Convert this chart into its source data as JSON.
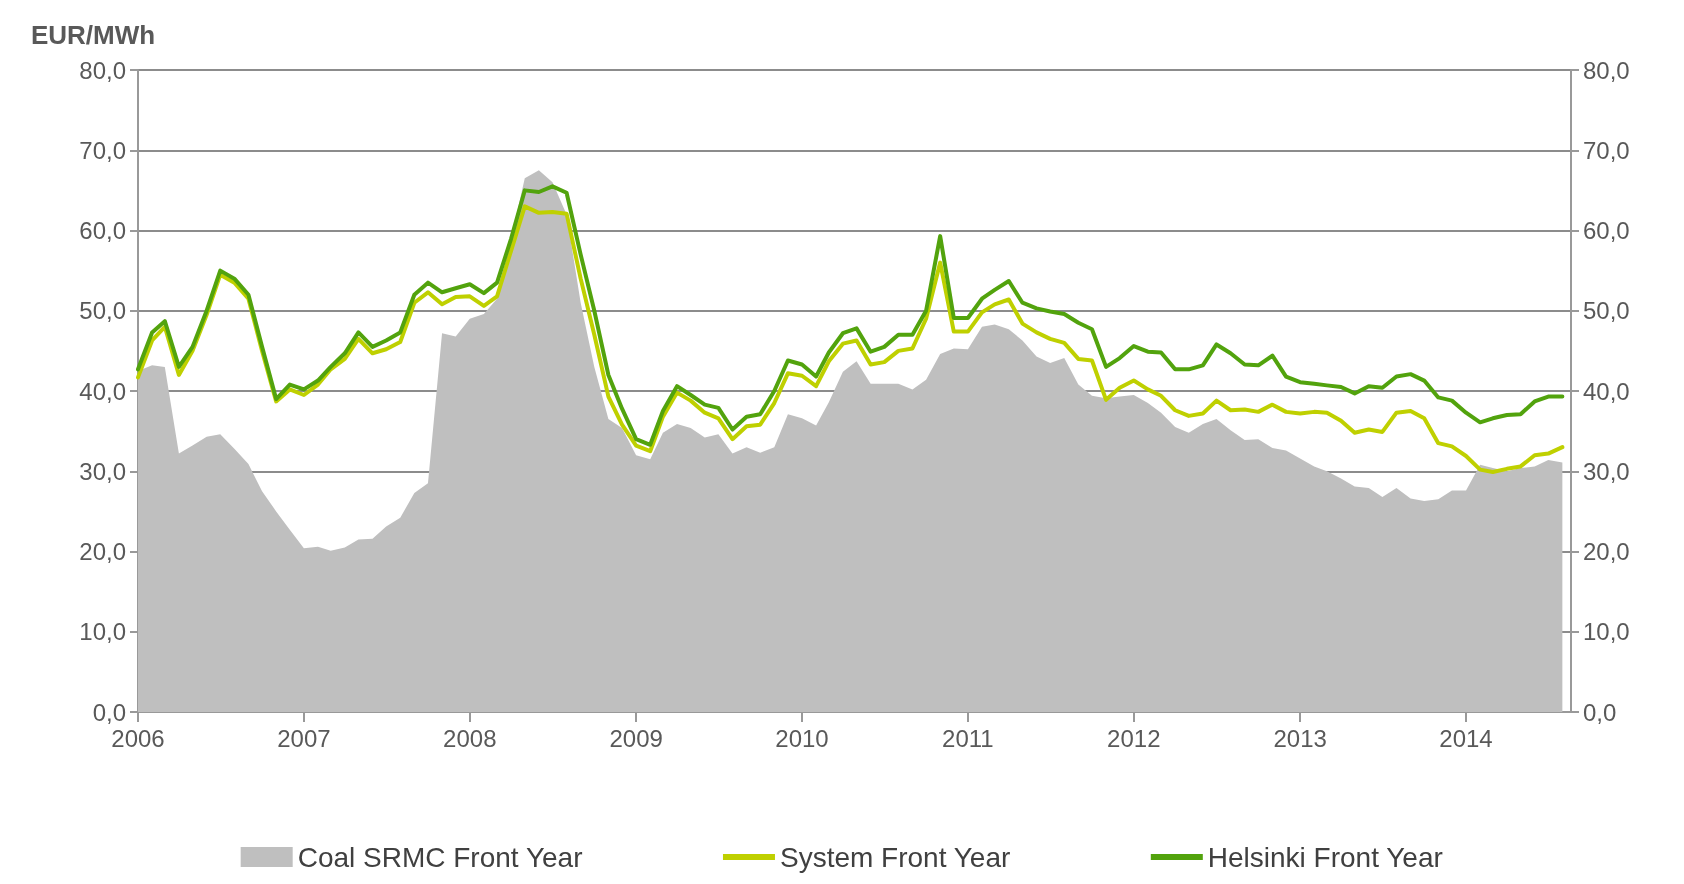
{
  "chart_data": {
    "type": "line",
    "ylabel": "EUR/MWh",
    "x": [
      "2006-01",
      "2006-02",
      "2006-03",
      "2006-04",
      "2006-05",
      "2006-06",
      "2006-07",
      "2006-08",
      "2006-09",
      "2006-10",
      "2006-11",
      "2006-12",
      "2007-01",
      "2007-02",
      "2007-03",
      "2007-04",
      "2007-05",
      "2007-06",
      "2007-07",
      "2007-08",
      "2007-09",
      "2007-10",
      "2007-11",
      "2007-12",
      "2008-01",
      "2008-02",
      "2008-03",
      "2008-04",
      "2008-05",
      "2008-06",
      "2008-07",
      "2008-08",
      "2008-09",
      "2008-10",
      "2008-11",
      "2008-12",
      "2009-01",
      "2009-02",
      "2009-03",
      "2009-04",
      "2009-05",
      "2009-06",
      "2009-07",
      "2009-08",
      "2009-09",
      "2009-10",
      "2009-11",
      "2009-12",
      "2010-01",
      "2010-02",
      "2010-03",
      "2010-04",
      "2010-05",
      "2010-06",
      "2010-07",
      "2010-08",
      "2010-09",
      "2010-10",
      "2010-11",
      "2010-12",
      "2011-01",
      "2011-02",
      "2011-03",
      "2011-04",
      "2011-05",
      "2011-06",
      "2011-07",
      "2011-08",
      "2011-09",
      "2011-10",
      "2011-11",
      "2011-12",
      "2012-01",
      "2012-02",
      "2012-03",
      "2012-04",
      "2012-05",
      "2012-06",
      "2012-07",
      "2012-08",
      "2012-09",
      "2012-10",
      "2012-11",
      "2012-12",
      "2013-01",
      "2013-02",
      "2013-03",
      "2013-04",
      "2013-05",
      "2013-06",
      "2013-07",
      "2013-08",
      "2013-09",
      "2013-10",
      "2013-11",
      "2013-12",
      "2014-01",
      "2014-02",
      "2014-03",
      "2014-04",
      "2014-05",
      "2014-06",
      "2014-07",
      "2014-08"
    ],
    "series": [
      {
        "name": "Coal SRMC Front Year",
        "type": "area",
        "color": "#bfbfbf",
        "values": [
          42.5,
          43.2,
          43,
          32.2,
          33.2,
          34.3,
          34.6,
          32.8,
          30.9,
          27.5,
          25,
          22.7,
          20.4,
          20.6,
          20.1,
          20.5,
          21.5,
          21.6,
          23.1,
          24.2,
          27.3,
          28.5,
          47.2,
          46.8,
          49,
          49.6,
          51.5,
          59,
          66.5,
          67.5,
          66,
          62,
          51,
          43,
          36.5,
          35.4,
          32,
          31.5,
          34.8,
          35.9,
          35.4,
          34.2,
          34.6,
          32.2,
          33,
          32.3,
          33,
          37.1,
          36.6,
          35.7,
          38.6,
          42.4,
          43.7,
          40.9,
          40.9,
          40.9,
          40.2,
          41.4,
          44.6,
          45.3,
          45.2,
          48,
          48.3,
          47.7,
          46.3,
          44.3,
          43.5,
          44.1,
          40.8,
          39.4,
          39.1,
          39.3,
          39.5,
          38.5,
          37.3,
          35.5,
          34.8,
          35.9,
          36.5,
          35.1,
          33.9,
          34,
          32.9,
          32.6,
          31.6,
          30.6,
          30,
          29.1,
          28.1,
          27.9,
          26.8,
          27.9,
          26.6,
          26.3,
          26.5,
          27.6,
          27.6,
          30.8,
          30.4,
          30,
          30.4,
          30.6,
          31.4,
          31.1
        ]
      },
      {
        "name": "System Front Year",
        "color": "#bfd000",
        "values": [
          41.7,
          46.3,
          48,
          42,
          45,
          49.5,
          54.5,
          53.5,
          51.5,
          45,
          38.7,
          40.2,
          39.5,
          40.8,
          42.7,
          44,
          46.5,
          44.7,
          45.2,
          46.1,
          51,
          52.3,
          50.8,
          51.7,
          51.8,
          50.6,
          51.8,
          57.5,
          63,
          62.2,
          62.3,
          62.1,
          54,
          47,
          39.3,
          35.8,
          33.2,
          32.5,
          36.8,
          39.8,
          38.8,
          37.3,
          36.6,
          34,
          35.6,
          35.8,
          38.5,
          42.2,
          41.9,
          40.6,
          43.7,
          45.9,
          46.3,
          43.3,
          43.6,
          45,
          45.3,
          49,
          56,
          47.4,
          47.4,
          49.8,
          50.8,
          51.4,
          48.4,
          47.3,
          46.5,
          46,
          44,
          43.8,
          38.9,
          40.4,
          41.3,
          40.2,
          39.4,
          37.6,
          36.9,
          37.2,
          38.8,
          37.6,
          37.7,
          37.4,
          38.3,
          37.4,
          37.2,
          37.4,
          37.3,
          36.3,
          34.8,
          35.2,
          34.9,
          37.3,
          37.5,
          36.6,
          33.5,
          33.1,
          31.9,
          30.2,
          29.9,
          30.3,
          30.6,
          32,
          32.2,
          33
        ]
      },
      {
        "name": "Helsinki Front Year",
        "color": "#52a30d",
        "values": [
          42.7,
          47.3,
          48.7,
          43,
          45.5,
          50,
          55,
          54,
          52,
          45.5,
          39,
          40.8,
          40.2,
          41.3,
          43,
          44.7,
          47.3,
          45.5,
          46.3,
          47.3,
          52,
          53.5,
          52.3,
          52.8,
          53.3,
          52.2,
          53.5,
          59,
          65,
          64.8,
          65.5,
          64.7,
          57,
          50,
          42,
          37.8,
          34,
          33.3,
          37.5,
          40.6,
          39.5,
          38.3,
          37.9,
          35.2,
          36.8,
          37.1,
          40,
          43.8,
          43.3,
          41.8,
          44.8,
          47.2,
          47.8,
          44.9,
          45.5,
          47,
          47,
          50,
          59.3,
          49.1,
          49.1,
          51.5,
          52.6,
          53.7,
          51,
          50.3,
          49.9,
          49.6,
          48.5,
          47.7,
          43,
          44.1,
          45.6,
          44.9,
          44.8,
          42.7,
          42.7,
          43.2,
          45.8,
          44.7,
          43.3,
          43.2,
          44.4,
          41.8,
          41.1,
          40.9,
          40.7,
          40.5,
          39.7,
          40.6,
          40.4,
          41.8,
          42.1,
          41.3,
          39.2,
          38.8,
          37.3,
          36.1,
          36.6,
          37,
          37.1,
          38.7,
          39.3,
          39.3
        ]
      }
    ],
    "xlim": [
      "2006",
      "2014-08-20"
    ],
    "xticks": [
      "2006",
      "2007",
      "2008",
      "2009",
      "2010",
      "2011",
      "2012",
      "2013",
      "2014"
    ],
    "ylim": [
      0,
      80
    ],
    "yticks": [
      {
        "value": 0,
        "label": "0,0"
      },
      {
        "value": 10,
        "label": "10,0"
      },
      {
        "value": 20,
        "label": "20,0"
      },
      {
        "value": 30,
        "label": "30,0"
      },
      {
        "value": 40,
        "label": "40,0"
      },
      {
        "value": 50,
        "label": "50,0"
      },
      {
        "value": 60,
        "label": "60,0"
      },
      {
        "value": 70,
        "label": "70,0"
      },
      {
        "value": 80,
        "label": "80,0"
      }
    ],
    "y2lim": [
      0,
      80
    ],
    "y2ticks": [
      {
        "value": 0,
        "label": "0,0"
      },
      {
        "value": 10,
        "label": "10,0"
      },
      {
        "value": 20,
        "label": "20,0"
      },
      {
        "value": 30,
        "label": "30,0"
      },
      {
        "value": 40,
        "label": "40,0"
      },
      {
        "value": 50,
        "label": "50,0"
      },
      {
        "value": 60,
        "label": "60,0"
      },
      {
        "value": 70,
        "label": "70,0"
      },
      {
        "value": 80,
        "label": "80,0"
      }
    ],
    "grid": "y",
    "legend": "bottom",
    "marker": "none",
    "line_style": "solid"
  }
}
